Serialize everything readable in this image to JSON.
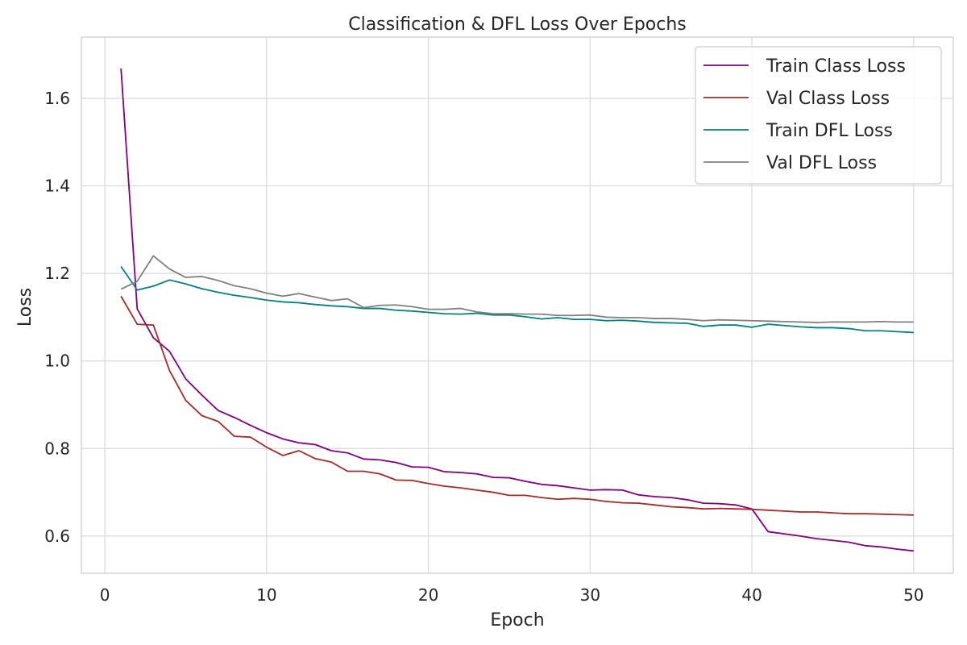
{
  "chart_data": {
    "type": "line",
    "title": "Classification & DFL Loss Over Epochs",
    "xlabel": "Epoch",
    "ylabel": "Loss",
    "xlim": [
      -1.45,
      52.45
    ],
    "ylim": [
      0.515,
      1.74
    ],
    "xticks": [
      0,
      10,
      20,
      30,
      40,
      50
    ],
    "yticks": [
      0.6,
      0.8,
      1.0,
      1.2,
      1.4,
      1.6
    ],
    "xtick_labels": [
      "0",
      "10",
      "20",
      "30",
      "40",
      "50"
    ],
    "ytick_labels": [
      "0.6",
      "0.8",
      "1.0",
      "1.2",
      "1.4",
      "1.6"
    ],
    "grid": true,
    "legend_position": "top-right",
    "x": [
      1,
      2,
      3,
      4,
      5,
      6,
      7,
      8,
      9,
      10,
      11,
      12,
      13,
      14,
      15,
      16,
      17,
      18,
      19,
      20,
      21,
      22,
      23,
      24,
      25,
      26,
      27,
      28,
      29,
      30,
      31,
      32,
      33,
      34,
      35,
      36,
      37,
      38,
      39,
      40,
      41,
      42,
      43,
      44,
      45,
      46,
      47,
      48,
      49,
      50
    ],
    "series": [
      {
        "name": "Train Class Loss",
        "color": "#800080",
        "values": [
          1.668,
          1.119,
          1.053,
          1.022,
          0.959,
          0.922,
          0.887,
          0.871,
          0.853,
          0.836,
          0.822,
          0.813,
          0.809,
          0.795,
          0.79,
          0.776,
          0.774,
          0.768,
          0.758,
          0.757,
          0.747,
          0.745,
          0.742,
          0.734,
          0.733,
          0.725,
          0.718,
          0.715,
          0.71,
          0.705,
          0.706,
          0.705,
          0.694,
          0.69,
          0.688,
          0.683,
          0.675,
          0.674,
          0.671,
          0.662,
          0.61,
          0.605,
          0.6,
          0.594,
          0.59,
          0.586,
          0.578,
          0.575,
          0.57,
          0.566
        ]
      },
      {
        "name": "Val Class Loss",
        "color": "#a52a2a",
        "values": [
          1.148,
          1.084,
          1.082,
          0.978,
          0.91,
          0.875,
          0.862,
          0.828,
          0.826,
          0.803,
          0.784,
          0.795,
          0.777,
          0.769,
          0.748,
          0.748,
          0.742,
          0.728,
          0.727,
          0.72,
          0.714,
          0.71,
          0.705,
          0.7,
          0.693,
          0.693,
          0.688,
          0.684,
          0.686,
          0.684,
          0.679,
          0.676,
          0.675,
          0.671,
          0.667,
          0.665,
          0.662,
          0.663,
          0.662,
          0.661,
          0.659,
          0.657,
          0.655,
          0.655,
          0.653,
          0.651,
          0.651,
          0.65,
          0.649,
          0.648
        ]
      },
      {
        "name": "Train DFL Loss",
        "color": "#008080",
        "values": [
          1.216,
          1.162,
          1.171,
          1.185,
          1.176,
          1.165,
          1.157,
          1.15,
          1.145,
          1.139,
          1.135,
          1.133,
          1.129,
          1.126,
          1.124,
          1.12,
          1.12,
          1.116,
          1.114,
          1.111,
          1.108,
          1.107,
          1.109,
          1.105,
          1.105,
          1.101,
          1.096,
          1.099,
          1.095,
          1.095,
          1.092,
          1.093,
          1.091,
          1.088,
          1.087,
          1.086,
          1.079,
          1.082,
          1.082,
          1.077,
          1.084,
          1.081,
          1.078,
          1.076,
          1.076,
          1.074,
          1.069,
          1.069,
          1.067,
          1.065
        ]
      },
      {
        "name": "Val DFL Loss",
        "color": "#808080",
        "values": [
          1.164,
          1.182,
          1.24,
          1.21,
          1.191,
          1.193,
          1.184,
          1.172,
          1.165,
          1.155,
          1.148,
          1.154,
          1.146,
          1.138,
          1.142,
          1.122,
          1.127,
          1.128,
          1.124,
          1.118,
          1.118,
          1.12,
          1.112,
          1.108,
          1.108,
          1.107,
          1.107,
          1.104,
          1.104,
          1.105,
          1.1,
          1.099,
          1.099,
          1.097,
          1.097,
          1.095,
          1.092,
          1.094,
          1.093,
          1.092,
          1.091,
          1.09,
          1.089,
          1.088,
          1.089,
          1.089,
          1.089,
          1.09,
          1.089,
          1.089
        ]
      }
    ]
  }
}
